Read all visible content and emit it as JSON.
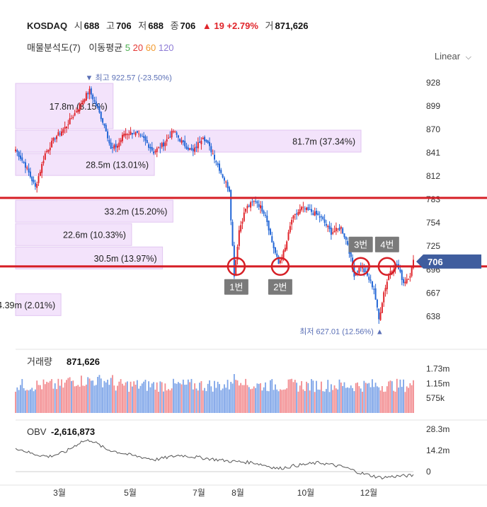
{
  "header": {
    "symbol": "KOSDAQ",
    "open_label": "시",
    "open": "688",
    "high_label": "고",
    "high": "706",
    "low_label": "저",
    "low": "688",
    "close_label": "종",
    "close": "706",
    "change": "▲ 19 +2.79%",
    "volume_label": "거",
    "volume": "871,626"
  },
  "indicators": {
    "profile_label": "매물분석도(7)",
    "ma_label": "이동평균",
    "ma_periods": [
      "5",
      "20",
      "60",
      "120"
    ]
  },
  "scale_selector": {
    "label": "Linear",
    "icon": "chevron-down-icon"
  },
  "colors": {
    "up": "#e0242a",
    "down": "#2266d6",
    "ma5": "#4caf50",
    "ma20": "#e53935",
    "ma60": "#f29a2e",
    "ma120": "#8e7cd6",
    "profile": "#f3e3fb",
    "annotation": "#d61f26"
  },
  "chart_data": [
    {
      "type": "candlestick",
      "y_ticks": [
        928,
        899,
        870,
        841,
        812,
        783,
        754,
        725,
        696,
        667,
        638
      ],
      "ylim": [
        619,
        942
      ],
      "x_ticks": [
        "3월",
        "5월",
        "7월",
        "8월",
        "10월",
        "12월"
      ],
      "current_price": "706",
      "high_marker": "▼ 최고 922.57 (-23.50%)",
      "low_marker": "최저 627.01 (12.56%) ▲",
      "close_path": [
        {
          "t": 0,
          "v": 845
        },
        {
          "t": 6,
          "v": 825
        },
        {
          "t": 12,
          "v": 798
        },
        {
          "t": 18,
          "v": 840
        },
        {
          "t": 24,
          "v": 860
        },
        {
          "t": 30,
          "v": 872
        },
        {
          "t": 36,
          "v": 890
        },
        {
          "t": 42,
          "v": 910
        },
        {
          "t": 45,
          "v": 918
        },
        {
          "t": 50,
          "v": 895
        },
        {
          "t": 55,
          "v": 870
        },
        {
          "t": 58,
          "v": 845
        },
        {
          "t": 62,
          "v": 850
        },
        {
          "t": 66,
          "v": 865
        },
        {
          "t": 72,
          "v": 866
        },
        {
          "t": 78,
          "v": 858
        },
        {
          "t": 84,
          "v": 842
        },
        {
          "t": 90,
          "v": 852
        },
        {
          "t": 96,
          "v": 868
        },
        {
          "t": 102,
          "v": 852
        },
        {
          "t": 108,
          "v": 842
        },
        {
          "t": 114,
          "v": 862
        },
        {
          "t": 120,
          "v": 840
        },
        {
          "t": 126,
          "v": 812
        },
        {
          "t": 130,
          "v": 795
        },
        {
          "t": 133,
          "v": 690
        },
        {
          "t": 136,
          "v": 745
        },
        {
          "t": 140,
          "v": 772
        },
        {
          "t": 146,
          "v": 782
        },
        {
          "t": 152,
          "v": 765
        },
        {
          "t": 156,
          "v": 730
        },
        {
          "t": 160,
          "v": 703
        },
        {
          "t": 164,
          "v": 722
        },
        {
          "t": 168,
          "v": 758
        },
        {
          "t": 174,
          "v": 772
        },
        {
          "t": 180,
          "v": 768
        },
        {
          "t": 186,
          "v": 760
        },
        {
          "t": 192,
          "v": 742
        },
        {
          "t": 198,
          "v": 748
        },
        {
          "t": 202,
          "v": 728
        },
        {
          "t": 206,
          "v": 690
        },
        {
          "t": 210,
          "v": 700
        },
        {
          "t": 214,
          "v": 688
        },
        {
          "t": 218,
          "v": 672
        },
        {
          "t": 221,
          "v": 634
        },
        {
          "t": 224,
          "v": 668
        },
        {
          "t": 228,
          "v": 695
        },
        {
          "t": 232,
          "v": 702
        },
        {
          "t": 236,
          "v": 680
        },
        {
          "t": 240,
          "v": 690
        },
        {
          "t": 242,
          "v": 706
        }
      ],
      "volume_profile": [
        {
          "label": "17.8m (8.15%)",
          "from": 870,
          "to": 928,
          "share": 8.15
        },
        {
          "label": "81.7m (37.34%)",
          "from": 841,
          "to": 870,
          "share": 37.34
        },
        {
          "label": "28.5m (13.01%)",
          "from": 812,
          "to": 841,
          "share": 13.01
        },
        {
          "label": "33.2m (15.20%)",
          "from": 754,
          "to": 783,
          "share": 15.2
        },
        {
          "label": "22.6m (10.33%)",
          "from": 725,
          "to": 754,
          "share": 10.33
        },
        {
          "label": "30.5m (13.97%)",
          "from": 696,
          "to": 725,
          "share": 13.97
        },
        {
          "label": "4.39m (2.01%)",
          "from": 638,
          "to": 667,
          "share": 2.01
        }
      ],
      "support_resistance_levels": [
        785,
        700
      ],
      "annotations": [
        {
          "label": "1번",
          "t": 133,
          "v": 700
        },
        {
          "label": "2번",
          "t": 161,
          "v": 700
        },
        {
          "label": "3번",
          "t": 210,
          "v": 700
        },
        {
          "label": "4번",
          "t": 226,
          "v": 700
        }
      ]
    },
    {
      "type": "bar",
      "title": "거래량",
      "value_label": "871,626",
      "y_ticks": [
        "1.73m",
        "1.15m",
        "575k"
      ],
      "y_tick_values": [
        1730000,
        1150000,
        575000
      ]
    },
    {
      "type": "line",
      "title": "OBV",
      "value_label": "-2,616,873",
      "y_ticks": [
        "28.3m",
        "14.2m",
        "0"
      ],
      "y_tick_values": [
        28.3,
        14.2,
        0
      ],
      "path": [
        {
          "t": 0,
          "v": 16
        },
        {
          "t": 10,
          "v": 12
        },
        {
          "t": 20,
          "v": 10
        },
        {
          "t": 30,
          "v": 13
        },
        {
          "t": 40,
          "v": 20
        },
        {
          "t": 46,
          "v": 21
        },
        {
          "t": 55,
          "v": 15
        },
        {
          "t": 70,
          "v": 11
        },
        {
          "t": 85,
          "v": 8
        },
        {
          "t": 100,
          "v": 11
        },
        {
          "t": 115,
          "v": 9
        },
        {
          "t": 130,
          "v": 7
        },
        {
          "t": 145,
          "v": 6
        },
        {
          "t": 160,
          "v": 2
        },
        {
          "t": 170,
          "v": 4
        },
        {
          "t": 185,
          "v": 6
        },
        {
          "t": 200,
          "v": 3
        },
        {
          "t": 210,
          "v": -1
        },
        {
          "t": 222,
          "v": -4
        },
        {
          "t": 232,
          "v": -3
        },
        {
          "t": 242,
          "v": -2.6
        }
      ]
    }
  ]
}
